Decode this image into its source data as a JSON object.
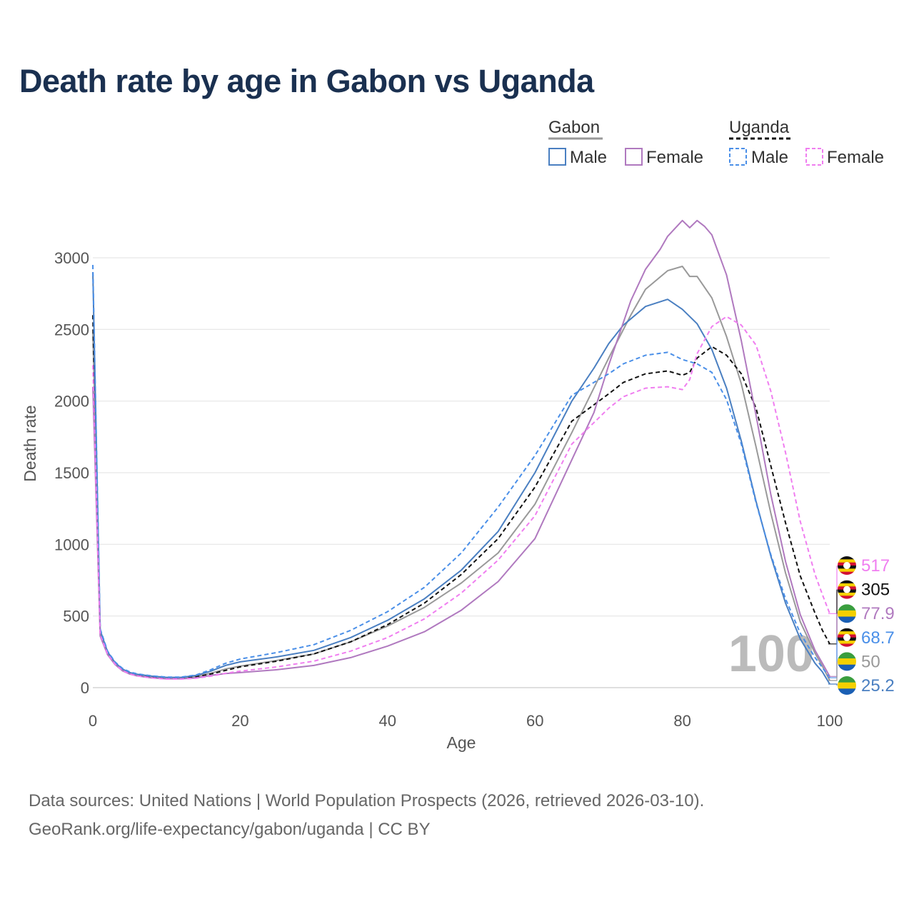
{
  "title": "Death rate by age in Gabon vs Uganda",
  "footer": {
    "sources": "Data sources: United Nations | World Population Prospects (2026, retrieved 2026-03-10).",
    "link": "GeoRank.org/life-expectancy/gabon/uganda | CC BY"
  },
  "legend": {
    "group1": "Gabon",
    "group2": "Uganda",
    "male": "Male",
    "female": "Female"
  },
  "watermark": "100",
  "colors": {
    "gabon_male": "#4a7fc1",
    "gabon_female": "#b079bf",
    "gabon_total": "#999999",
    "uganda_male": "#4a8fe8",
    "uganda_female": "#f07ef0",
    "uganda_total": "#111111",
    "title": "#1a3050"
  },
  "chart_data": {
    "type": "line",
    "title": "Death rate by age in Gabon vs Uganda",
    "xlabel": "Age",
    "ylabel": "Death rate",
    "xlim": [
      0,
      100
    ],
    "ylim": [
      0,
      3000
    ],
    "xticks": [
      0,
      20,
      40,
      60,
      80,
      100
    ],
    "yticks": [
      0,
      500,
      1000,
      1500,
      2000,
      2500,
      3000
    ],
    "grid": true,
    "series": [
      {
        "name": "Gabon Total",
        "country": "Gabon",
        "sex": "Total",
        "dash": false,
        "color": "#999999",
        "end_label": "50",
        "points": [
          [
            0,
            2500
          ],
          [
            1,
            380
          ],
          [
            2,
            240
          ],
          [
            3,
            170
          ],
          [
            4,
            125
          ],
          [
            5,
            100
          ],
          [
            6,
            88
          ],
          [
            8,
            75
          ],
          [
            10,
            68
          ],
          [
            12,
            68
          ],
          [
            14,
            78
          ],
          [
            16,
            100
          ],
          [
            18,
            130
          ],
          [
            20,
            150
          ],
          [
            25,
            190
          ],
          [
            30,
            235
          ],
          [
            35,
            320
          ],
          [
            40,
            430
          ],
          [
            45,
            560
          ],
          [
            50,
            730
          ],
          [
            55,
            940
          ],
          [
            60,
            1280
          ],
          [
            65,
            1780
          ],
          [
            70,
            2300
          ],
          [
            73,
            2600
          ],
          [
            75,
            2780
          ],
          [
            78,
            2910
          ],
          [
            80,
            2940
          ],
          [
            81,
            2870
          ],
          [
            82,
            2870
          ],
          [
            84,
            2720
          ],
          [
            86,
            2450
          ],
          [
            88,
            2120
          ],
          [
            90,
            1680
          ],
          [
            92,
            1220
          ],
          [
            94,
            800
          ],
          [
            96,
            460
          ],
          [
            98,
            240
          ],
          [
            99,
            150
          ],
          [
            100,
            50
          ]
        ]
      },
      {
        "name": "Uganda Total",
        "country": "Uganda",
        "sex": "Total",
        "dash": true,
        "color": "#111111",
        "end_label": "305",
        "points": [
          [
            0,
            2600
          ],
          [
            1,
            390
          ],
          [
            2,
            245
          ],
          [
            3,
            172
          ],
          [
            4,
            128
          ],
          [
            5,
            102
          ],
          [
            6,
            88
          ],
          [
            8,
            74
          ],
          [
            10,
            66
          ],
          [
            12,
            66
          ],
          [
            14,
            75
          ],
          [
            16,
            95
          ],
          [
            18,
            120
          ],
          [
            20,
            145
          ],
          [
            25,
            185
          ],
          [
            30,
            235
          ],
          [
            35,
            320
          ],
          [
            40,
            440
          ],
          [
            45,
            590
          ],
          [
            50,
            790
          ],
          [
            55,
            1040
          ],
          [
            60,
            1400
          ],
          [
            65,
            1860
          ],
          [
            70,
            2050
          ],
          [
            72,
            2130
          ],
          [
            75,
            2190
          ],
          [
            78,
            2210
          ],
          [
            80,
            2180
          ],
          [
            81,
            2200
          ],
          [
            82,
            2300
          ],
          [
            84,
            2380
          ],
          [
            86,
            2320
          ],
          [
            88,
            2190
          ],
          [
            90,
            1950
          ],
          [
            92,
            1550
          ],
          [
            94,
            1150
          ],
          [
            96,
            780
          ],
          [
            98,
            520
          ],
          [
            99,
            400
          ],
          [
            100,
            305
          ]
        ]
      },
      {
        "name": "Gabon Male",
        "country": "Gabon",
        "sex": "Male",
        "dash": false,
        "color": "#4a7fc1",
        "end_label": "25.2",
        "points": [
          [
            0,
            2900
          ],
          [
            1,
            400
          ],
          [
            2,
            250
          ],
          [
            3,
            176
          ],
          [
            4,
            130
          ],
          [
            5,
            105
          ],
          [
            6,
            93
          ],
          [
            8,
            80
          ],
          [
            10,
            72
          ],
          [
            12,
            72
          ],
          [
            14,
            85
          ],
          [
            16,
            115
          ],
          [
            18,
            155
          ],
          [
            20,
            180
          ],
          [
            25,
            215
          ],
          [
            30,
            260
          ],
          [
            35,
            350
          ],
          [
            40,
            470
          ],
          [
            45,
            620
          ],
          [
            50,
            820
          ],
          [
            55,
            1090
          ],
          [
            60,
            1500
          ],
          [
            65,
            2000
          ],
          [
            68,
            2230
          ],
          [
            70,
            2400
          ],
          [
            72,
            2530
          ],
          [
            75,
            2660
          ],
          [
            78,
            2710
          ],
          [
            80,
            2640
          ],
          [
            82,
            2540
          ],
          [
            84,
            2360
          ],
          [
            86,
            2090
          ],
          [
            88,
            1720
          ],
          [
            90,
            1300
          ],
          [
            92,
            920
          ],
          [
            94,
            590
          ],
          [
            96,
            340
          ],
          [
            98,
            170
          ],
          [
            99,
            110
          ],
          [
            100,
            25
          ]
        ]
      },
      {
        "name": "Gabon Female",
        "country": "Gabon",
        "sex": "Female",
        "dash": false,
        "color": "#b079bf",
        "end_label": "77.9",
        "points": [
          [
            0,
            2100
          ],
          [
            1,
            360
          ],
          [
            2,
            230
          ],
          [
            3,
            162
          ],
          [
            4,
            118
          ],
          [
            5,
            95
          ],
          [
            6,
            82
          ],
          [
            8,
            68
          ],
          [
            10,
            62
          ],
          [
            12,
            62
          ],
          [
            14,
            68
          ],
          [
            16,
            85
          ],
          [
            18,
            98
          ],
          [
            20,
            105
          ],
          [
            25,
            125
          ],
          [
            30,
            155
          ],
          [
            35,
            210
          ],
          [
            40,
            290
          ],
          [
            45,
            390
          ],
          [
            50,
            540
          ],
          [
            55,
            740
          ],
          [
            60,
            1040
          ],
          [
            65,
            1590
          ],
          [
            68,
            1920
          ],
          [
            70,
            2250
          ],
          [
            73,
            2700
          ],
          [
            75,
            2920
          ],
          [
            77,
            3060
          ],
          [
            78,
            3150
          ],
          [
            80,
            3260
          ],
          [
            81,
            3210
          ],
          [
            82,
            3260
          ],
          [
            83,
            3220
          ],
          [
            84,
            3160
          ],
          [
            86,
            2880
          ],
          [
            88,
            2420
          ],
          [
            90,
            1900
          ],
          [
            92,
            1350
          ],
          [
            94,
            880
          ],
          [
            96,
            510
          ],
          [
            98,
            260
          ],
          [
            99,
            170
          ],
          [
            100,
            78
          ]
        ]
      },
      {
        "name": "Uganda Male",
        "country": "Uganda",
        "sex": "Male",
        "dash": true,
        "color": "#4a8fe8",
        "end_label": "68.7",
        "points": [
          [
            0,
            2950
          ],
          [
            1,
            410
          ],
          [
            2,
            255
          ],
          [
            3,
            180
          ],
          [
            4,
            135
          ],
          [
            5,
            110
          ],
          [
            6,
            96
          ],
          [
            8,
            82
          ],
          [
            10,
            74
          ],
          [
            12,
            74
          ],
          [
            14,
            88
          ],
          [
            16,
            125
          ],
          [
            18,
            170
          ],
          [
            20,
            200
          ],
          [
            25,
            245
          ],
          [
            30,
            300
          ],
          [
            35,
            400
          ],
          [
            40,
            530
          ],
          [
            45,
            700
          ],
          [
            50,
            940
          ],
          [
            55,
            1260
          ],
          [
            60,
            1620
          ],
          [
            65,
            2040
          ],
          [
            70,
            2190
          ],
          [
            72,
            2260
          ],
          [
            75,
            2320
          ],
          [
            78,
            2340
          ],
          [
            80,
            2290
          ],
          [
            82,
            2260
          ],
          [
            84,
            2200
          ],
          [
            86,
            2010
          ],
          [
            88,
            1700
          ],
          [
            90,
            1290
          ],
          [
            92,
            930
          ],
          [
            94,
            620
          ],
          [
            96,
            380
          ],
          [
            98,
            210
          ],
          [
            99,
            140
          ],
          [
            100,
            69
          ]
        ]
      },
      {
        "name": "Uganda Female",
        "country": "Uganda",
        "sex": "Female",
        "dash": true,
        "color": "#f07ef0",
        "end_label": "517",
        "points": [
          [
            0,
            2250
          ],
          [
            1,
            370
          ],
          [
            2,
            235
          ],
          [
            3,
            165
          ],
          [
            4,
            120
          ],
          [
            5,
            96
          ],
          [
            6,
            82
          ],
          [
            8,
            68
          ],
          [
            10,
            60
          ],
          [
            12,
            60
          ],
          [
            14,
            66
          ],
          [
            16,
            80
          ],
          [
            18,
            100
          ],
          [
            20,
            115
          ],
          [
            25,
            145
          ],
          [
            30,
            185
          ],
          [
            35,
            255
          ],
          [
            40,
            350
          ],
          [
            45,
            480
          ],
          [
            50,
            660
          ],
          [
            55,
            890
          ],
          [
            60,
            1200
          ],
          [
            65,
            1700
          ],
          [
            68,
            1850
          ],
          [
            70,
            1950
          ],
          [
            72,
            2030
          ],
          [
            75,
            2090
          ],
          [
            78,
            2100
          ],
          [
            80,
            2080
          ],
          [
            81,
            2150
          ],
          [
            82,
            2330
          ],
          [
            84,
            2520
          ],
          [
            86,
            2590
          ],
          [
            88,
            2530
          ],
          [
            90,
            2390
          ],
          [
            92,
            2070
          ],
          [
            94,
            1640
          ],
          [
            96,
            1160
          ],
          [
            98,
            790
          ],
          [
            99,
            650
          ],
          [
            100,
            517
          ]
        ]
      }
    ]
  }
}
